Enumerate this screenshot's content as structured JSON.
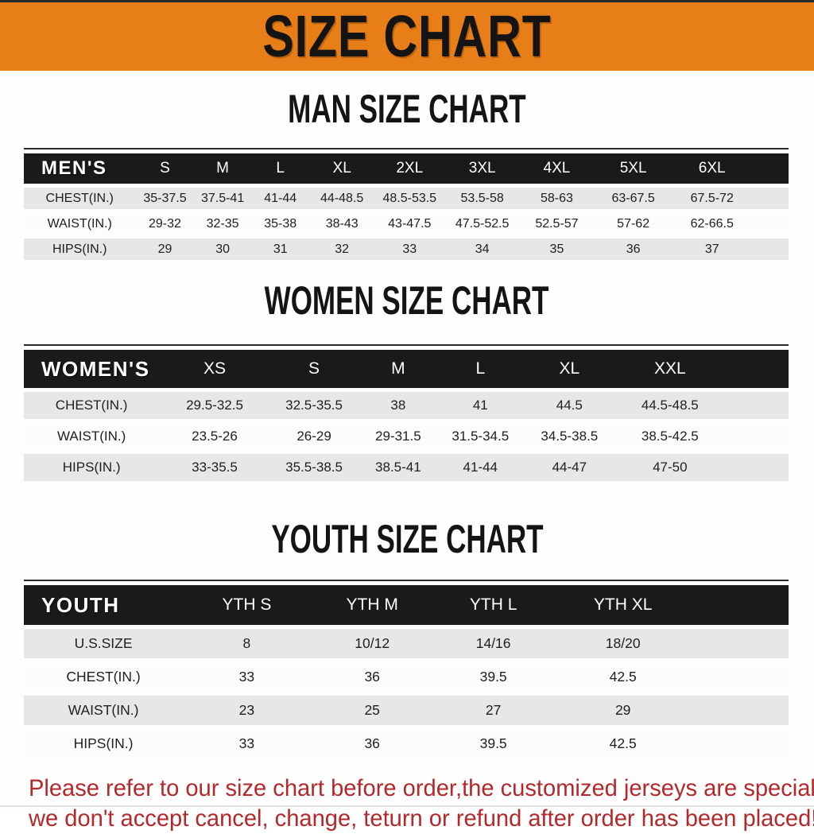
{
  "banner": {
    "title": "SIZE CHART"
  },
  "sections": {
    "men": {
      "heading": "MAN SIZE CHART",
      "header_label": "MEN'S",
      "columns": [
        "S",
        "M",
        "L",
        "XL",
        "2XL",
        "3XL",
        "4XL",
        "5XL",
        "6XL"
      ],
      "rows": [
        {
          "label": "CHEST(IN.)",
          "values": [
            "35-37.5",
            "37.5-41",
            "41-44",
            "44-48.5",
            "48.5-53.5",
            "53.5-58",
            "58-63",
            "63-67.5",
            "67.5-72"
          ]
        },
        {
          "label": "WAIST(IN.)",
          "values": [
            "29-32",
            "32-35",
            "35-38",
            "38-43",
            "43-47.5",
            "47.5-52.5",
            "52.5-57",
            "57-62",
            "62-66.5"
          ]
        },
        {
          "label": "HIPS(IN.)",
          "values": [
            "29",
            "30",
            "31",
            "32",
            "33",
            "34",
            "35",
            "36",
            "37"
          ]
        }
      ]
    },
    "women": {
      "heading": "WOMEN SIZE CHART",
      "header_label": "WOMEN'S",
      "columns": [
        "XS",
        "S",
        "M",
        "L",
        "XL",
        "XXL"
      ],
      "rows": [
        {
          "label": "CHEST(IN.)",
          "values": [
            "29.5-32.5",
            "32.5-35.5",
            "38",
            "41",
            "44.5",
            "44.5-48.5"
          ]
        },
        {
          "label": "WAIST(IN.)",
          "values": [
            "23.5-26",
            "26-29",
            "29-31.5",
            "31.5-34.5",
            "34.5-38.5",
            "38.5-42.5"
          ]
        },
        {
          "label": "HIPS(IN.)",
          "values": [
            "33-35.5",
            "35.5-38.5",
            "38.5-41",
            "41-44",
            "44-47",
            "47-50"
          ]
        }
      ]
    },
    "youth": {
      "heading": "YOUTH SIZE CHART",
      "header_label": "YOUTH",
      "columns": [
        "YTH S",
        "YTH M",
        "YTH L",
        "YTH XL"
      ],
      "rows": [
        {
          "label": "U.S.SIZE",
          "values": [
            "8",
            "10/12",
            "14/16",
            "18/20"
          ]
        },
        {
          "label": "CHEST(IN.)",
          "values": [
            "33",
            "36",
            "39.5",
            "42.5"
          ]
        },
        {
          "label": "WAIST(IN.)",
          "values": [
            "23",
            "25",
            "27",
            "29"
          ]
        },
        {
          "label": "HIPS(IN.)",
          "values": [
            "33",
            "36",
            "39.5",
            "42.5"
          ]
        }
      ]
    }
  },
  "footer": {
    "line1": "Please refer to our size chart before order,the customized jerseys are special products,",
    "line2": "we don't accept cancel, change, teturn or refund after order has been placed!"
  },
  "colors": {
    "banner_orange": "#E87E17",
    "table_header_black": "#1A1A1A",
    "row_gray": "#E7E7E7",
    "row_white": "#FCFCFC",
    "footer_red": "#B3292B"
  }
}
